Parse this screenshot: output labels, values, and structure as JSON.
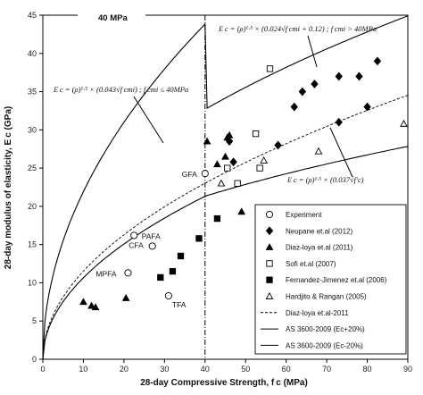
{
  "chart_data": {
    "type": "scatter",
    "xlabel": "28-day Compressive Strength, f c (MPa)",
    "ylabel": "28-day modulus of elasticity, E c (GPa)",
    "xlim": [
      0,
      90
    ],
    "ylim": [
      0,
      45
    ],
    "xticks": [
      "0",
      "10",
      "20",
      "30",
      "40",
      "50",
      "60",
      "70",
      "80",
      "90"
    ],
    "yticks": [
      "0",
      "5",
      "10",
      "15",
      "20",
      "25",
      "30",
      "35",
      "40",
      "45"
    ],
    "grid": false,
    "legend_position": "bottom-right",
    "vline": {
      "x": 40,
      "label": "40 MPa"
    },
    "equations": {
      "high": "E c = (ρ)¹·⁵ × (0.024√f cmi + 0.12) ; f cmi > 40MPa",
      "low": "E c = (ρ)¹·⁵ × (0.043√f cmi) ; f cmi ≤ 40MPa",
      "diaz": "E c = (ρ)¹·⁵ × (0.037√f′c)"
    },
    "series": [
      {
        "name": "Experiment",
        "marker": "circle-open",
        "points": [
          [
            21,
            11.3
          ],
          [
            22.5,
            16.2
          ],
          [
            27,
            14.8
          ],
          [
            31,
            8.3
          ],
          [
            40,
            24.3
          ]
        ],
        "labels": [
          "MPFA",
          "CFA",
          "PAFA",
          "TFA",
          "GFA"
        ]
      },
      {
        "name": "Neupane et.al (2012)",
        "marker": "diamond-filled",
        "points": [
          [
            46,
            28.5
          ],
          [
            47,
            25.8
          ],
          [
            58,
            28
          ],
          [
            62,
            33
          ],
          [
            64,
            35
          ],
          [
            67,
            36
          ],
          [
            73,
            37
          ],
          [
            73,
            31
          ],
          [
            78,
            37
          ],
          [
            80,
            33
          ],
          [
            82.5,
            39
          ]
        ]
      },
      {
        "name": "Diaz-loya et.al (2011)",
        "marker": "triangle-filled",
        "points": [
          [
            10,
            7.5
          ],
          [
            12,
            7
          ],
          [
            13,
            6.8
          ],
          [
            20.5,
            8
          ],
          [
            40.5,
            28.5
          ],
          [
            43,
            25.5
          ],
          [
            45,
            26.5
          ],
          [
            45.5,
            29
          ],
          [
            46,
            29.3
          ],
          [
            49,
            19.3
          ]
        ]
      },
      {
        "name": "Sofi et.al (2007)",
        "marker": "square-open",
        "points": [
          [
            45.5,
            25
          ],
          [
            48,
            23
          ],
          [
            52.5,
            29.5
          ],
          [
            53.5,
            25
          ],
          [
            56,
            38
          ]
        ]
      },
      {
        "name": "Fernandez-Jimenez et.al (2006)",
        "marker": "square-filled",
        "points": [
          [
            29,
            10.7
          ],
          [
            32,
            11.5
          ],
          [
            34,
            13.5
          ],
          [
            38.5,
            15.8
          ],
          [
            43,
            18.4
          ]
        ]
      },
      {
        "name": "Hardjito & Rangan (2005)",
        "marker": "triangle-open",
        "points": [
          [
            44,
            23
          ],
          [
            54.5,
            26
          ],
          [
            68,
            27.2
          ],
          [
            89,
            30.8
          ]
        ]
      }
    ],
    "curves": [
      {
        "name": "Diaz-loya et.al-2011",
        "style": "dashed"
      },
      {
        "name": "AS 3600-2009 (Ec+20%)",
        "style": "solid"
      },
      {
        "name": "AS 3600-2009 (Ec-20%)",
        "style": "solid"
      }
    ]
  }
}
